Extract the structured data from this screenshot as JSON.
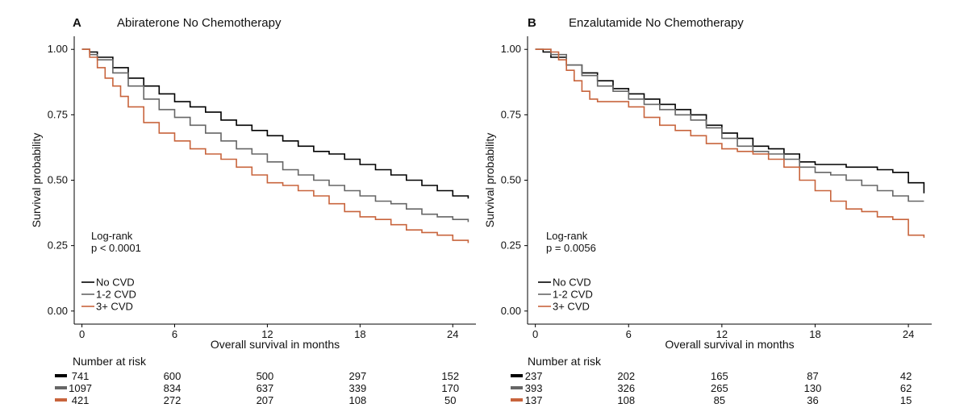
{
  "colors": {
    "no_cvd": "#000000",
    "cvd_1_2": "#666666",
    "cvd_3plus": "#c8643c"
  },
  "chart_data": [
    {
      "type": "line",
      "step": true,
      "panel_letter": "A",
      "title": "Abiraterone No Chemotherapy",
      "xlabel": "Overall survival in months",
      "ylabel": "Survival probability",
      "xlim": [
        -0.5,
        25.5
      ],
      "ylim": [
        -0.05,
        1.05
      ],
      "xticks": [
        0,
        6,
        12,
        18,
        24
      ],
      "yticks": [
        0.0,
        0.25,
        0.5,
        0.75,
        1.0
      ],
      "ytick_labels": [
        "0.00",
        "0.25",
        "0.50",
        "0.75",
        "1.00"
      ],
      "grid": false,
      "annotation": {
        "line1": "Log-rank",
        "line2": "p < 0.0001"
      },
      "legend_position": "bottom-left",
      "series": [
        {
          "name": "No CVD",
          "color": "#000000",
          "x": [
            0,
            0.5,
            1,
            2,
            3,
            4,
            5,
            6,
            7,
            8,
            9,
            10,
            11,
            12,
            13,
            14,
            15,
            16,
            17,
            18,
            19,
            20,
            21,
            22,
            23,
            24,
            25
          ],
          "y": [
            1.0,
            0.99,
            0.97,
            0.93,
            0.89,
            0.86,
            0.83,
            0.8,
            0.78,
            0.76,
            0.73,
            0.71,
            0.69,
            0.67,
            0.65,
            0.63,
            0.61,
            0.6,
            0.58,
            0.56,
            0.54,
            0.52,
            0.5,
            0.48,
            0.46,
            0.44,
            0.43
          ]
        },
        {
          "name": "1-2 CVD",
          "color": "#666666",
          "x": [
            0,
            0.5,
            1,
            2,
            3,
            4,
            5,
            6,
            7,
            8,
            9,
            10,
            11,
            12,
            13,
            14,
            15,
            16,
            17,
            18,
            19,
            20,
            21,
            22,
            23,
            24,
            25
          ],
          "y": [
            1.0,
            0.98,
            0.96,
            0.91,
            0.86,
            0.81,
            0.77,
            0.74,
            0.71,
            0.68,
            0.65,
            0.62,
            0.6,
            0.57,
            0.54,
            0.52,
            0.5,
            0.48,
            0.46,
            0.44,
            0.42,
            0.41,
            0.39,
            0.37,
            0.36,
            0.35,
            0.34
          ]
        },
        {
          "name": "3+ CVD",
          "color": "#c8643c",
          "x": [
            0,
            0.5,
            1,
            1.5,
            2,
            2.5,
            3,
            4,
            5,
            6,
            7,
            8,
            9,
            10,
            11,
            12,
            13,
            14,
            15,
            16,
            17,
            18,
            19,
            20,
            21,
            22,
            23,
            24,
            25
          ],
          "y": [
            1.0,
            0.97,
            0.93,
            0.89,
            0.86,
            0.82,
            0.78,
            0.72,
            0.68,
            0.65,
            0.62,
            0.6,
            0.58,
            0.55,
            0.52,
            0.49,
            0.48,
            0.46,
            0.44,
            0.41,
            0.38,
            0.36,
            0.35,
            0.33,
            0.31,
            0.3,
            0.29,
            0.27,
            0.26
          ]
        }
      ]
    },
    {
      "type": "line",
      "step": true,
      "panel_letter": "B",
      "title": "Enzalutamide No Chemotherapy",
      "xlabel": "Overall survival in months",
      "ylabel": "Survival probability",
      "xlim": [
        -0.5,
        25.5
      ],
      "ylim": [
        -0.05,
        1.05
      ],
      "xticks": [
        0,
        6,
        12,
        18,
        24
      ],
      "yticks": [
        0.0,
        0.25,
        0.5,
        0.75,
        1.0
      ],
      "ytick_labels": [
        "0.00",
        "0.25",
        "0.50",
        "0.75",
        "1.00"
      ],
      "grid": false,
      "annotation": {
        "line1": "Log-rank",
        "line2": "p = 0.0056"
      },
      "legend_position": "bottom-left",
      "series": [
        {
          "name": "No CVD",
          "color": "#000000",
          "x": [
            0,
            0.5,
            1,
            2,
            3,
            4,
            5,
            6,
            7,
            8,
            9,
            10,
            11,
            12,
            13,
            14,
            15,
            16,
            17,
            18,
            19,
            20,
            21,
            22,
            23,
            24,
            25
          ],
          "y": [
            1.0,
            0.99,
            0.97,
            0.94,
            0.91,
            0.88,
            0.85,
            0.83,
            0.81,
            0.79,
            0.77,
            0.75,
            0.71,
            0.68,
            0.66,
            0.63,
            0.62,
            0.6,
            0.57,
            0.56,
            0.56,
            0.55,
            0.55,
            0.54,
            0.53,
            0.49,
            0.45
          ]
        },
        {
          "name": "1-2 CVD",
          "color": "#666666",
          "x": [
            0,
            0.5,
            1,
            2,
            3,
            4,
            5,
            6,
            7,
            8,
            9,
            10,
            11,
            12,
            13,
            14,
            15,
            16,
            17,
            18,
            19,
            20,
            21,
            22,
            23,
            24,
            25
          ],
          "y": [
            1.0,
            1.0,
            0.98,
            0.94,
            0.9,
            0.86,
            0.84,
            0.81,
            0.79,
            0.77,
            0.75,
            0.73,
            0.7,
            0.66,
            0.63,
            0.61,
            0.6,
            0.58,
            0.55,
            0.53,
            0.52,
            0.5,
            0.48,
            0.46,
            0.44,
            0.42,
            0.42
          ]
        },
        {
          "name": "3+ CVD",
          "color": "#c8643c",
          "x": [
            0,
            0.5,
            1,
            1.5,
            2,
            2.5,
            3,
            3.5,
            4,
            5,
            6,
            7,
            8,
            9,
            10,
            11,
            12,
            13,
            14,
            15,
            16,
            17,
            18,
            19,
            20,
            21,
            22,
            23,
            24,
            25
          ],
          "y": [
            1.0,
            1.0,
            0.99,
            0.96,
            0.92,
            0.88,
            0.84,
            0.81,
            0.8,
            0.8,
            0.78,
            0.74,
            0.71,
            0.69,
            0.67,
            0.64,
            0.62,
            0.61,
            0.6,
            0.58,
            0.55,
            0.5,
            0.46,
            0.42,
            0.39,
            0.38,
            0.36,
            0.35,
            0.29,
            0.28
          ]
        }
      ]
    }
  ],
  "risk_tables": [
    {
      "title": "Number at risk",
      "rows": [
        {
          "name": "No CVD",
          "color": "#000000",
          "values": [
            "741",
            "600",
            "500",
            "297",
            "152"
          ]
        },
        {
          "name": "1-2 CVD",
          "color": "#666666",
          "values": [
            "1097",
            "834",
            "637",
            "339",
            "170"
          ]
        },
        {
          "name": "3+ CVD",
          "color": "#c8643c",
          "values": [
            "421",
            "272",
            "207",
            "108",
            "50"
          ]
        }
      ]
    },
    {
      "title": "Number at risk",
      "rows": [
        {
          "name": "No CVD",
          "color": "#000000",
          "values": [
            "237",
            "202",
            "165",
            "87",
            "42"
          ]
        },
        {
          "name": "1-2 CVD",
          "color": "#666666",
          "values": [
            "393",
            "326",
            "265",
            "130",
            "62"
          ]
        },
        {
          "name": "3+ CVD",
          "color": "#c8643c",
          "values": [
            "137",
            "108",
            "85",
            "36",
            "15"
          ]
        }
      ]
    }
  ]
}
